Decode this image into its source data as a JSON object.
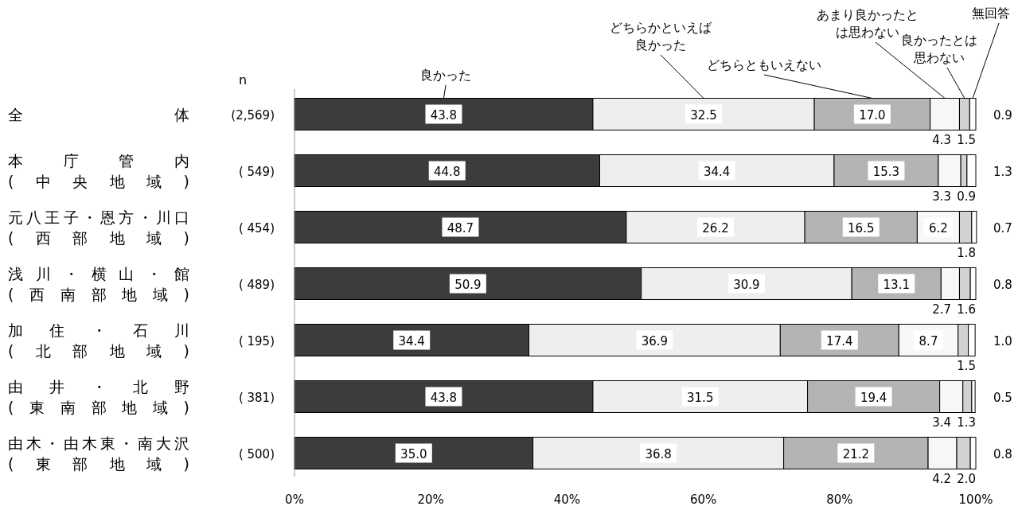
{
  "chart_data": {
    "type": "bar",
    "orientation": "horizontal",
    "stacked": true,
    "categories": [
      "全体",
      "本庁管内\n(中央地域)",
      "元八王子・恩方・川口\n(西部地域)",
      "浅川・横山・館\n(西南部地域)",
      "加住・石川\n(北部地域)",
      "由井・北野\n(東南部地域)",
      "由木・由木東・南大沢\n(東部地域)"
    ],
    "series": [
      {
        "name": "良かった",
        "color": "#3c3c3c",
        "values": [
          43.8,
          44.8,
          48.7,
          50.9,
          34.4,
          43.8,
          35.0
        ],
        "value_labels": [
          "43.8",
          "44.8",
          "48.7",
          "50.9",
          "34.4",
          "43.8",
          "35.0"
        ]
      },
      {
        "name": "どちらかといえば良かった",
        "color": "#eeeeee",
        "values": [
          32.5,
          34.4,
          26.2,
          30.9,
          36.9,
          31.5,
          36.8
        ],
        "value_labels": [
          "32.5",
          "34.4",
          "26.2",
          "30.9",
          "36.9",
          "31.5",
          "36.8"
        ]
      },
      {
        "name": "どちらともいえない",
        "color": "#b4b4b4",
        "values": [
          17.0,
          15.3,
          16.5,
          13.1,
          17.4,
          19.4,
          21.2
        ],
        "value_labels": [
          "17.0",
          "15.3",
          "16.5",
          "13.1",
          "17.4",
          "19.4",
          "21.2"
        ]
      },
      {
        "name": "あまり良かったとは思わない",
        "color": "#f7f7f7",
        "values": [
          4.3,
          3.3,
          6.2,
          2.7,
          8.7,
          3.4,
          4.2
        ],
        "value_labels": [
          "4.3",
          "3.3",
          "6.2",
          "2.7",
          "8.7",
          "3.4",
          "4.2"
        ]
      },
      {
        "name": "良かったとは思わない",
        "color": "#d2d2d2",
        "values": [
          1.5,
          0.9,
          1.8,
          1.6,
          1.5,
          1.3,
          2.0
        ],
        "value_labels": [
          "1.5",
          "0.9",
          "1.8",
          "1.6",
          "1.5",
          "1.3",
          "2.0"
        ]
      },
      {
        "name": "無回答",
        "color": "#ffffff",
        "values": [
          0.9,
          1.3,
          0.7,
          0.8,
          1.0,
          0.5,
          0.8
        ],
        "value_labels": [
          "0.9",
          "1.3",
          "0.7",
          "0.8",
          "1.0",
          "0.5",
          "0.8"
        ]
      }
    ],
    "xlim": [
      0,
      100
    ],
    "xticks": [
      {
        "value": 0,
        "label": "0%"
      },
      {
        "value": 20,
        "label": "20%"
      },
      {
        "value": 40,
        "label": "40%"
      },
      {
        "value": 60,
        "label": "60%"
      },
      {
        "value": 80,
        "label": "80%"
      },
      {
        "value": 100,
        "label": "100%"
      }
    ],
    "annotations": [
      "n",
      "(2,569)",
      "( 549)",
      "( 454)",
      "( 489)",
      "( 195)",
      "( 381)",
      "( 500)"
    ],
    "grid": false
  }
}
